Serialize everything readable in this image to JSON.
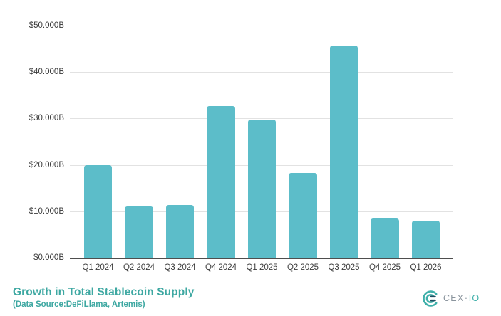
{
  "chart_data": {
    "type": "bar",
    "title": "Growth in Total Stablecoin Supply",
    "subtitle": "(Data Source:DeFiLlama, Artemis)",
    "categories": [
      "Q1 2024",
      "Q2 2024",
      "Q3 2024",
      "Q4 2024",
      "Q1 2025",
      "Q2 2025",
      "Q3 2025",
      "Q4 2025",
      "Q1 2026"
    ],
    "values": [
      20.0,
      11.0,
      11.3,
      32.6,
      29.7,
      18.2,
      45.7,
      8.4,
      7.9
    ],
    "unit": "billions USD",
    "xlabel": "",
    "ylabel": "",
    "ylim": [
      0,
      50
    ],
    "ytick_step": 10,
    "ytick_labels": [
      "$0.000B",
      "$10.000B",
      "$20.000B",
      "$30.000B",
      "$40.000B",
      "$50.000B"
    ],
    "grid": true,
    "legend": "none",
    "bar_color": "#5CBDC9"
  },
  "logo": {
    "brand_cex": "CEX",
    "separator": "·",
    "brand_io": "IO",
    "icon": "cexio-concentric-c-mark"
  },
  "colors": {
    "bar": "#5CBDC9",
    "title_teal": "#3EA8A2",
    "axis_text": "#3B3B3B",
    "gridline": "#E2E2E2",
    "axis_line": "#4E4E4E",
    "logo_gray": "#8A949D",
    "logo_teal": "#3FB0AA",
    "logo_dark": "#1F4E60"
  }
}
